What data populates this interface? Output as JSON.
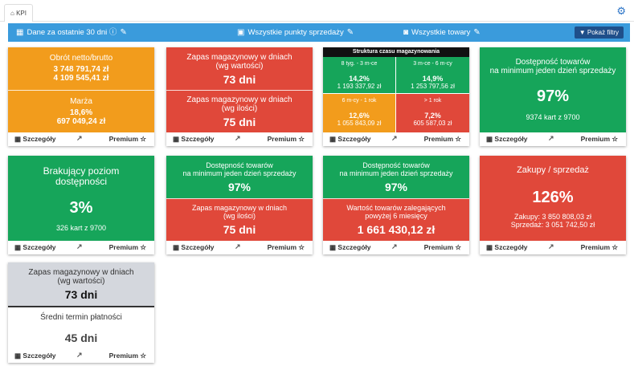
{
  "tab": {
    "label": "KPI"
  },
  "filters": {
    "date": "Dane za ostatnie 30 dni",
    "points": "Wszystkie punkty sprzedaży",
    "goods": "Wszystkie towary",
    "show_button": "Pokaż filtry"
  },
  "common": {
    "details": "Szczegóły",
    "premium": "Premium"
  },
  "colors": {
    "green": "#16a55a",
    "red": "#e0483a",
    "orange": "#f29c1c",
    "blue": "#3a9bdc",
    "grey": "#d4d7dd"
  },
  "t1": {
    "top_title": "Obrót netto/brutto",
    "top_v1": "3 748 791,74 zł",
    "top_v2": "4 109 545,41 zł",
    "bot_title": "Marża",
    "bot_v1": "18,6%",
    "bot_v2": "697 049,24 zł"
  },
  "t2": {
    "top_title": "Zapas magazynowy w dniach",
    "top_sub": "(wg wartości)",
    "top_value": "73 dni",
    "bot_title": "Zapas magazynowy w dniach",
    "bot_sub": "(wg ilości)",
    "bot_value": "75 dni"
  },
  "t3": {
    "header": "Struktura czasu magazynowania",
    "q": [
      {
        "label": "8 tyg. - 3 m-ce",
        "pct": "14,2%",
        "amount": "1 193 337,92 zł"
      },
      {
        "label": "3 m-ce - 6 m-cy",
        "pct": "14,9%",
        "amount": "1 253 797,56 zł"
      },
      {
        "label": "6 m-cy - 1 rok",
        "pct": "12,6%",
        "amount": "1 055 843,09 zł"
      },
      {
        "label": "> 1 rok",
        "pct": "7,2%",
        "amount": "605 587,03 zł"
      }
    ]
  },
  "t4": {
    "title1": "Dostępność towarów",
    "title2": "na minimum jeden dzień sprzedaży",
    "value": "97%",
    "sub": "9374 kart z 9700"
  },
  "t5": {
    "title1": "Brakujący poziom",
    "title2": "dostępności",
    "value": "3%",
    "sub": "326 kart z 9700"
  },
  "t6": {
    "top_title1": "Dostępność towarów",
    "top_title2": "na minimum jeden dzień sprzedaży",
    "top_value": "97%",
    "bot_title": "Zapas magazynowy w dniach",
    "bot_sub": "(wg ilości)",
    "bot_value": "75 dni"
  },
  "t7": {
    "top_title1": "Dostępność towarów",
    "top_title2": "na minimum jeden dzień sprzedaży",
    "top_value": "97%",
    "bot_title1": "Wartość towarów zalegających",
    "bot_title2": "powyżej 6 miesięcy",
    "bot_value": "1 661 430,12 zł"
  },
  "t8": {
    "title": "Zakupy / sprzedaż",
    "value": "126%",
    "line1": "Zakupy: 3 850 808,03 zł",
    "line2": "Sprzedaż: 3 051 742,50 zł"
  },
  "t9": {
    "top_title": "Zapas magazynowy w dniach",
    "top_sub": "(wg wartości)",
    "top_value": "73 dni",
    "bot_title": "Średni termin płatności",
    "bot_value": "45 dni"
  }
}
